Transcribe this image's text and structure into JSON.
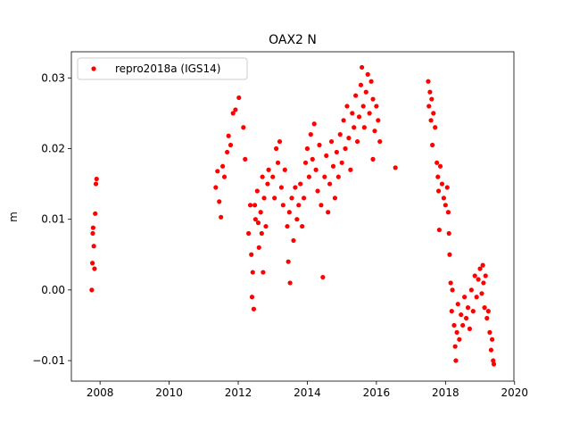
{
  "chart_data": {
    "type": "scatter",
    "title": "OAX2 N",
    "y_label": "m",
    "xlim": [
      2007.17,
      2019.98
    ],
    "ylim": [
      -0.0129,
      0.0337
    ],
    "xticks": [
      2008,
      2010,
      2012,
      2014,
      2016,
      2018,
      2020
    ],
    "yticks": [
      {
        "value": -0.01,
        "label": "−0.01"
      },
      {
        "value": 0,
        "label": "0.00"
      },
      0.01,
      0.02,
      0.03
    ],
    "legend_position": "upper-left",
    "series": [
      {
        "name": "repro2018a (IGS14)",
        "color": "#ff0000",
        "x": [
          2007.76,
          2007.78,
          2007.8,
          2007.82,
          2007.84,
          2007.86,
          2007.88,
          2007.9,
          2007.79,
          2011.35,
          2011.4,
          2011.45,
          2011.5,
          2011.6,
          2011.68,
          2011.72,
          2011.78,
          2011.85,
          2011.92,
          2012.02,
          2011.55,
          2012.15,
          2012.2,
          2012.3,
          2012.35,
          2012.4,
          2012.42,
          2012.45,
          2012.5,
          2012.55,
          2012.6,
          2012.65,
          2012.7,
          2012.72,
          2012.75,
          2012.8,
          2012.85,
          2012.88,
          2012.38,
          2012.48,
          2012.58,
          2012.68,
          2013.0,
          2013.05,
          2013.1,
          2013.15,
          2013.2,
          2013.25,
          2013.3,
          2013.35,
          2013.42,
          2013.45,
          2013.48,
          2013.5,
          2013.55,
          2013.6,
          2013.65,
          2013.7,
          2013.75,
          2013.8,
          2013.85,
          2013.9,
          2013.95,
          2014.0,
          2014.05,
          2014.1,
          2014.15,
          2014.2,
          2014.25,
          2014.3,
          2014.35,
          2014.4,
          2014.45,
          2014.5,
          2014.55,
          2014.6,
          2014.65,
          2014.7,
          2014.75,
          2014.8,
          2014.85,
          2014.9,
          2014.95,
          2015.0,
          2015.05,
          2015.1,
          2015.15,
          2015.2,
          2015.25,
          2015.3,
          2015.35,
          2015.4,
          2015.45,
          2015.5,
          2015.55,
          2015.58,
          2015.62,
          2015.65,
          2015.7,
          2015.75,
          2015.8,
          2015.85,
          2015.9,
          2015.95,
          2016.0,
          2016.05,
          2016.1,
          2015.9,
          2016.55,
          2017.5,
          2017.52,
          2017.55,
          2017.58,
          2017.6,
          2017.62,
          2017.65,
          2017.7,
          2017.75,
          2017.78,
          2017.8,
          2017.82,
          2017.85,
          2017.9,
          2017.95,
          2018.0,
          2018.05,
          2018.08,
          2018.1,
          2018.12,
          2018.15,
          2018.18,
          2018.2,
          2018.25,
          2018.28,
          2018.3,
          2018.33,
          2018.36,
          2018.4,
          2018.45,
          2018.5,
          2018.55,
          2018.6,
          2018.65,
          2018.7,
          2018.75,
          2018.8,
          2018.85,
          2018.9,
          2018.95,
          2019.0,
          2019.05,
          2019.08,
          2019.1,
          2019.13,
          2019.16,
          2019.2,
          2019.24,
          2019.28,
          2019.32,
          2019.35,
          2019.38,
          2019.4
        ],
        "values": [
          0.0,
          0.0038,
          0.0088,
          0.0062,
          0.003,
          0.0108,
          0.015,
          0.0157,
          0.008,
          0.0145,
          0.0168,
          0.0125,
          0.0103,
          0.016,
          0.0195,
          0.0218,
          0.0205,
          0.025,
          0.0255,
          0.0272,
          0.0175,
          0.023,
          0.0185,
          0.008,
          0.012,
          -0.001,
          0.0025,
          -0.0027,
          0.01,
          0.014,
          0.006,
          0.011,
          0.016,
          0.0025,
          0.013,
          0.009,
          0.015,
          0.017,
          0.005,
          0.012,
          0.0095,
          0.008,
          0.016,
          0.013,
          0.02,
          0.018,
          0.021,
          0.0145,
          0.012,
          0.017,
          0.009,
          0.004,
          0.011,
          0.001,
          0.013,
          0.007,
          0.0145,
          0.01,
          0.012,
          0.015,
          0.009,
          0.013,
          0.018,
          0.02,
          0.016,
          0.022,
          0.0185,
          0.0235,
          0.017,
          0.014,
          0.0205,
          0.012,
          0.0018,
          0.016,
          0.019,
          0.011,
          0.015,
          0.021,
          0.0175,
          0.013,
          0.0195,
          0.016,
          0.022,
          0.018,
          0.024,
          0.02,
          0.026,
          0.0215,
          0.017,
          0.025,
          0.023,
          0.0275,
          0.021,
          0.0245,
          0.029,
          0.0315,
          0.026,
          0.023,
          0.028,
          0.0305,
          0.025,
          0.0295,
          0.027,
          0.0225,
          0.026,
          0.024,
          0.021,
          0.0185,
          0.0173,
          0.0295,
          0.026,
          0.028,
          0.024,
          0.027,
          0.0205,
          0.025,
          0.023,
          0.018,
          0.016,
          0.014,
          0.0085,
          0.0175,
          0.015,
          0.013,
          0.012,
          0.0145,
          0.011,
          0.008,
          0.005,
          0.001,
          -0.003,
          0.0,
          -0.005,
          -0.008,
          -0.01,
          -0.006,
          -0.002,
          -0.007,
          -0.0035,
          -0.005,
          -0.001,
          -0.004,
          -0.0025,
          -0.0055,
          0.0,
          -0.003,
          0.002,
          -0.001,
          0.0015,
          0.003,
          -0.0005,
          0.0035,
          0.001,
          -0.0025,
          0.002,
          -0.004,
          -0.003,
          -0.006,
          -0.0085,
          -0.007,
          -0.01,
          -0.0105
        ]
      }
    ]
  }
}
